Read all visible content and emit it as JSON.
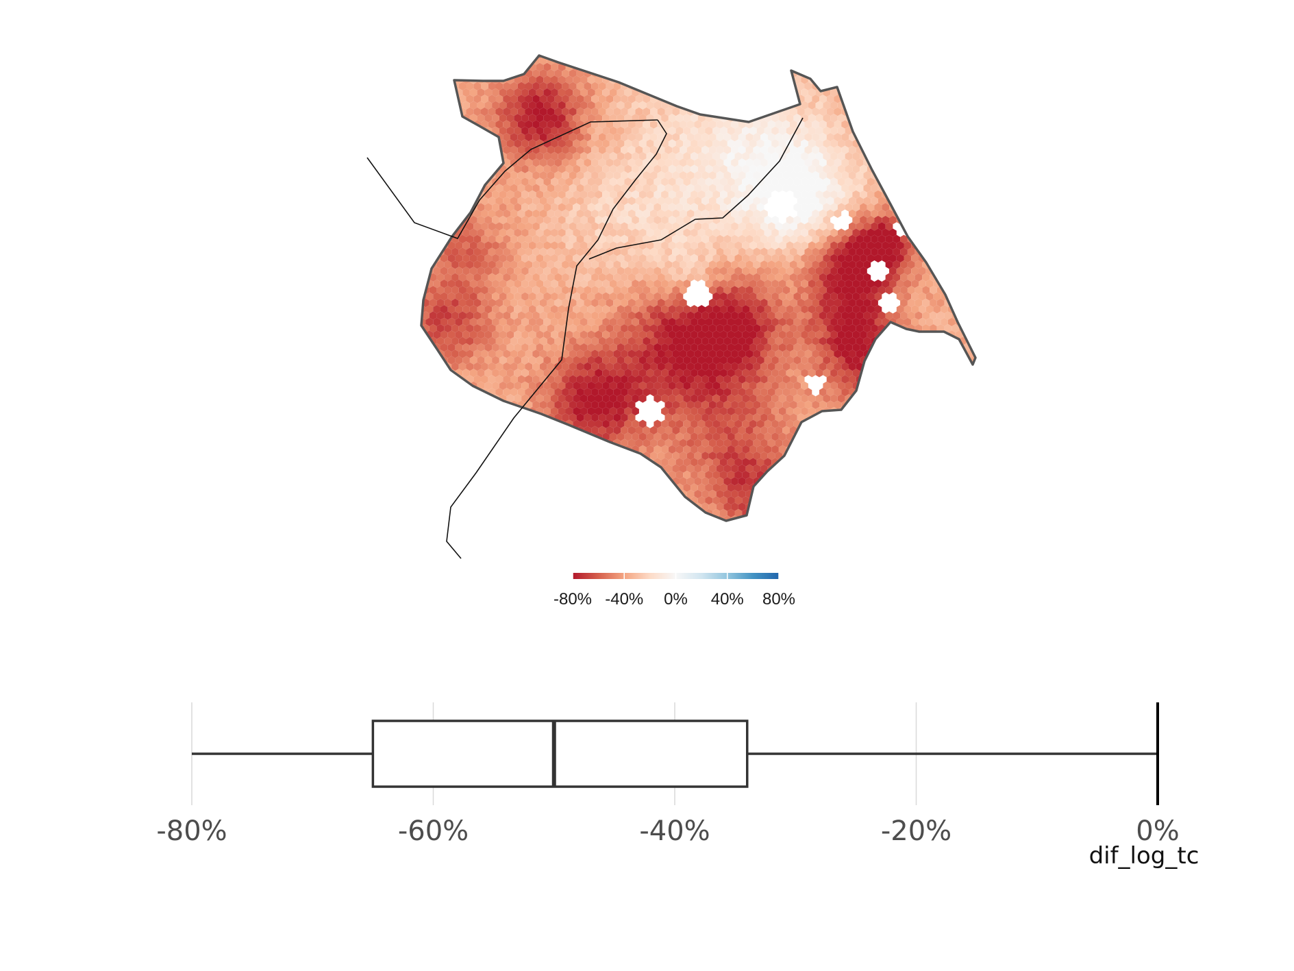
{
  "chart_data": [
    {
      "type": "heatmap",
      "subtype": "hexbin-choropleth-map",
      "description_legend": {
        "ticks": [
          "-80%",
          "-40%",
          "0%",
          "40%",
          "80%"
        ],
        "range": [
          -80,
          80
        ],
        "colors": [
          "#b2182b",
          "#d6604d",
          "#f4a582",
          "#fddbc7",
          "#f7f7f7",
          "#d1e5f0",
          "#92c5de",
          "#4393c3",
          "#2166ac"
        ]
      },
      "grid": false
    },
    {
      "type": "boxplot",
      "orientation": "horizontal",
      "xlabel": "dif_log_tc",
      "xlim": [
        -80,
        0
      ],
      "tick_labels": [
        "-80%",
        "-60%",
        "-40%",
        "-20%",
        "0%"
      ],
      "ticks": [
        -80,
        -60,
        -40,
        -20,
        0
      ],
      "stats": {
        "min": -80,
        "q1": -65,
        "median": -50,
        "q3": -34,
        "max": 0
      },
      "reference_line": 0,
      "grid": true
    }
  ],
  "colors": {
    "outline": "#555555",
    "road": "#111111",
    "box": "#333333",
    "grid": "#d9d9d9"
  }
}
